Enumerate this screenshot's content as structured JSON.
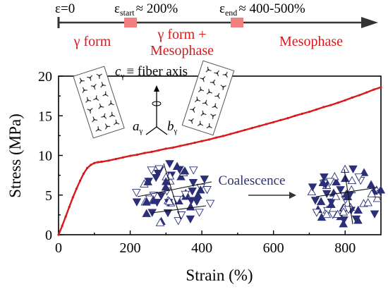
{
  "phase_bar": {
    "eps0": "ε=0",
    "eps_start_sym": "ε",
    "eps_start_sub": "start",
    "eps_start_val": "≈ 200%",
    "eps_end_sym": "ε",
    "eps_end_sub": "end",
    "eps_end_val": "≈ 400-500%",
    "gamma_form": "γ form",
    "gamma_meso_1": "γ form +",
    "gamma_meso_2": "Mesophase",
    "mesophase": "Mesophase",
    "colors": {
      "phase": "#d7191c",
      "marker": "#f08080",
      "axis": "#333333"
    }
  },
  "inset_crystal": {
    "c_sym": "c",
    "c_sub": "γ",
    "fiber_axis": "≡ fiber axis",
    "a_sym": "a",
    "a_sub": "γ",
    "b_sym": "b",
    "b_sub": "γ"
  },
  "inset_coalescence": {
    "label": "Coalescence",
    "colors": {
      "filled": "#2b2f78",
      "open": "#ffffff",
      "text": "#2b2f78"
    }
  },
  "chart_data": {
    "type": "line",
    "title": "",
    "xlabel": "Strain (%)",
    "ylabel": "Stress (MPa)",
    "xlim": [
      0,
      900
    ],
    "ylim": [
      0,
      20
    ],
    "xticks": [
      0,
      200,
      400,
      600,
      800
    ],
    "yticks": [
      0,
      5,
      10,
      15,
      20
    ],
    "grid": false,
    "series": [
      {
        "color": "#d7191c",
        "x": [
          0,
          10,
          20,
          30,
          40,
          50,
          60,
          70,
          80,
          90,
          100,
          110,
          120,
          140,
          160,
          180,
          200,
          220,
          240,
          260,
          280,
          300,
          320,
          340,
          360,
          380,
          400,
          420,
          440,
          460,
          480,
          500,
          520,
          540,
          560,
          580,
          600,
          620,
          640,
          660,
          680,
          700,
          720,
          740,
          760,
          780,
          800,
          820,
          840,
          860,
          880,
          900
        ],
        "y": [
          0,
          1.1,
          2.3,
          3.5,
          4.7,
          5.8,
          6.8,
          7.7,
          8.4,
          8.8,
          9.05,
          9.15,
          9.2,
          9.35,
          9.55,
          9.75,
          9.95,
          10.1,
          10.3,
          10.45,
          10.65,
          10.85,
          11.0,
          11.2,
          11.4,
          11.6,
          11.8,
          12.0,
          12.25,
          12.45,
          12.7,
          12.95,
          13.2,
          13.45,
          13.7,
          13.95,
          14.2,
          14.45,
          14.7,
          15.0,
          15.25,
          15.5,
          15.8,
          16.1,
          16.35,
          16.65,
          16.95,
          17.3,
          17.6,
          17.95,
          18.3,
          18.6
        ]
      }
    ]
  }
}
